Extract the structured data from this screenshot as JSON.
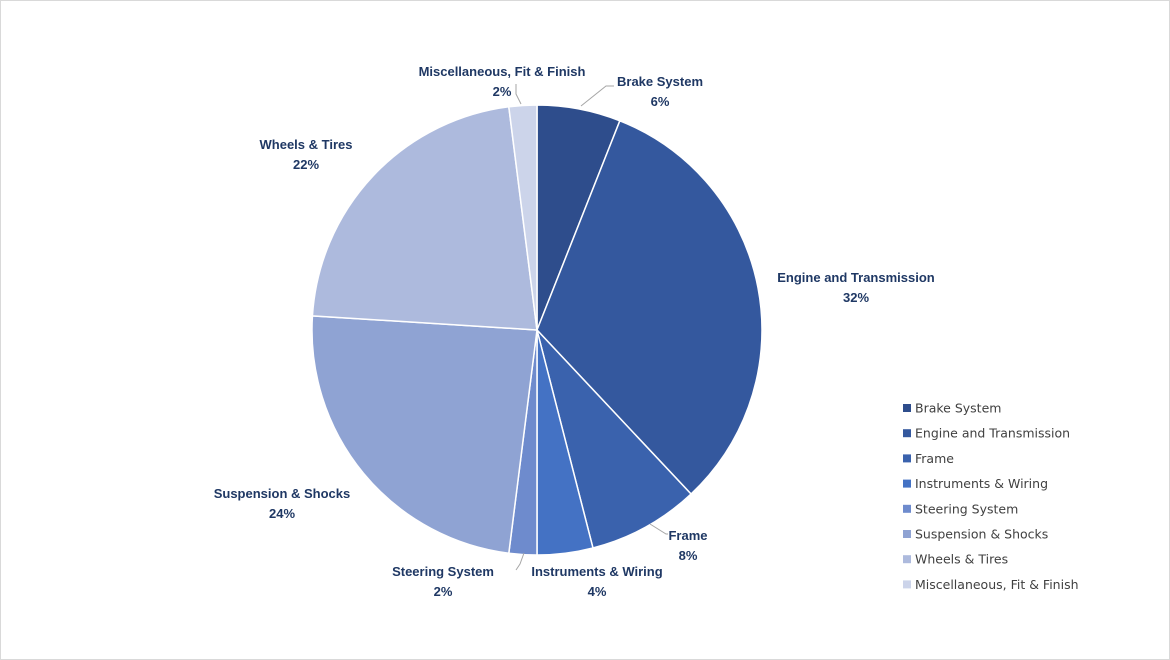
{
  "chart_data": {
    "type": "pie",
    "title": "",
    "legend_position": "right",
    "slices": [
      {
        "label": "Brake System",
        "value": 6,
        "value_label": "6%",
        "color": "#2e4d8c"
      },
      {
        "label": "Engine and Transmission",
        "value": 32,
        "value_label": "32%",
        "color": "#34589e"
      },
      {
        "label": "Frame",
        "value": 8,
        "value_label": "8%",
        "color": "#3a62ad"
      },
      {
        "label": "Instruments & Wiring",
        "value": 4,
        "value_label": "4%",
        "color": "#4472c4"
      },
      {
        "label": "Steering System",
        "value": 2,
        "value_label": "2%",
        "color": "#6e8bcd"
      },
      {
        "label": "Suspension & Shocks",
        "value": 24,
        "value_label": "24%",
        "color": "#8fa3d3"
      },
      {
        "label": "Wheels & Tires",
        "value": 22,
        "value_label": "22%",
        "color": "#adbadd"
      },
      {
        "label": "Miscellaneous, Fit & Finish",
        "value": 2,
        "value_label": "2%",
        "color": "#ccd4ea"
      }
    ]
  }
}
